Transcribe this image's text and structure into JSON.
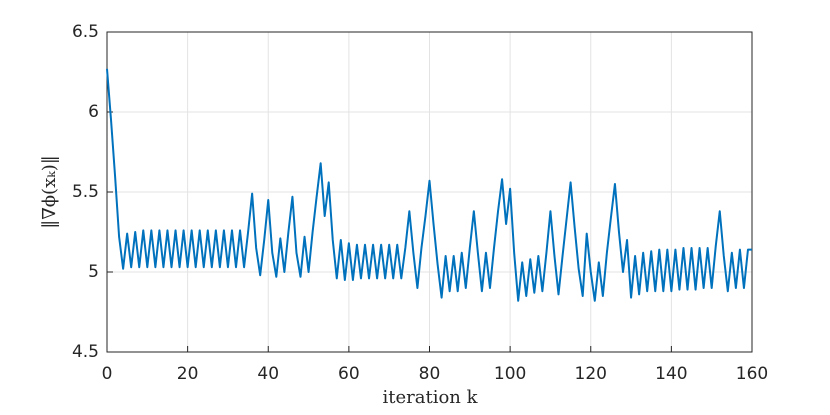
{
  "chart_data": {
    "type": "line",
    "xlabel": "iteration k",
    "ylabel": "‖∇ϕ(xₖ)‖",
    "xlim": [
      0,
      160
    ],
    "xticks": [
      0,
      20,
      40,
      60,
      80,
      100,
      120,
      140,
      160
    ],
    "ylim": [
      4.5,
      6.5
    ],
    "yticks": [
      4.5,
      5,
      5.5,
      6,
      6.5
    ],
    "grid": true,
    "x": [
      0,
      1,
      2,
      3,
      4,
      5,
      6,
      7,
      8,
      9,
      10,
      11,
      12,
      13,
      14,
      15,
      16,
      17,
      18,
      19,
      20,
      21,
      22,
      23,
      24,
      25,
      26,
      27,
      28,
      29,
      30,
      31,
      32,
      33,
      34,
      35,
      36,
      37,
      38,
      39,
      40,
      41,
      42,
      43,
      44,
      45,
      46,
      47,
      48,
      49,
      50,
      51,
      52,
      53,
      54,
      55,
      56,
      57,
      58,
      59,
      60,
      61,
      62,
      63,
      64,
      65,
      66,
      67,
      68,
      69,
      70,
      71,
      72,
      73,
      74,
      75,
      76,
      77,
      78,
      79,
      80,
      81,
      82,
      83,
      84,
      85,
      86,
      87,
      88,
      89,
      90,
      91,
      92,
      93,
      94,
      95,
      96,
      97,
      98,
      99,
      100,
      101,
      102,
      103,
      104,
      105,
      106,
      107,
      108,
      109,
      110,
      111,
      112,
      113,
      114,
      115,
      116,
      117,
      118,
      119,
      120,
      121,
      122,
      123,
      124,
      125,
      126,
      127,
      128,
      129,
      130,
      131,
      132,
      133,
      134,
      135,
      136,
      137,
      138,
      139,
      140,
      141,
      142,
      143,
      144,
      145,
      146,
      147,
      148,
      149,
      150,
      151,
      152,
      153,
      154,
      155,
      156,
      157,
      158,
      159,
      160
    ],
    "series": [
      {
        "color": "#0072bd",
        "values": [
          6.27,
          5.95,
          5.6,
          5.22,
          5.02,
          5.24,
          5.03,
          5.25,
          5.03,
          5.26,
          5.03,
          5.26,
          5.03,
          5.26,
          5.03,
          5.26,
          5.03,
          5.26,
          5.03,
          5.26,
          5.03,
          5.26,
          5.03,
          5.26,
          5.03,
          5.26,
          5.03,
          5.26,
          5.03,
          5.26,
          5.03,
          5.26,
          5.03,
          5.26,
          5.03,
          5.25,
          5.49,
          5.15,
          4.98,
          5.2,
          5.45,
          5.12,
          4.97,
          5.21,
          5.0,
          5.25,
          5.47,
          5.12,
          4.97,
          5.22,
          5.0,
          5.25,
          5.47,
          5.68,
          5.35,
          5.56,
          5.2,
          4.96,
          5.2,
          4.95,
          5.18,
          4.95,
          5.17,
          4.96,
          5.17,
          4.96,
          5.17,
          4.96,
          5.17,
          4.96,
          5.17,
          4.96,
          5.17,
          4.96,
          5.15,
          5.38,
          5.12,
          4.9,
          5.15,
          5.35,
          5.57,
          5.3,
          5.05,
          4.84,
          5.1,
          4.88,
          5.1,
          4.88,
          5.12,
          4.9,
          5.15,
          5.38,
          5.12,
          4.88,
          5.12,
          4.9,
          5.15,
          5.38,
          5.58,
          5.3,
          5.52,
          5.12,
          4.82,
          5.06,
          4.85,
          5.08,
          4.87,
          5.1,
          4.88,
          5.12,
          5.38,
          5.1,
          4.86,
          5.1,
          5.33,
          5.56,
          5.28,
          5.02,
          4.85,
          5.24,
          5.0,
          4.82,
          5.06,
          4.85,
          5.12,
          5.34,
          5.55,
          5.25,
          5.0,
          5.2,
          4.84,
          5.1,
          4.86,
          5.12,
          4.88,
          5.13,
          4.88,
          5.14,
          4.88,
          5.14,
          4.88,
          5.14,
          4.89,
          5.15,
          4.89,
          5.15,
          4.89,
          5.15,
          4.9,
          5.15,
          4.9,
          5.16,
          5.38,
          5.1,
          4.88,
          5.12,
          4.9,
          5.14,
          4.9,
          5.14,
          5.14
        ]
      }
    ]
  }
}
